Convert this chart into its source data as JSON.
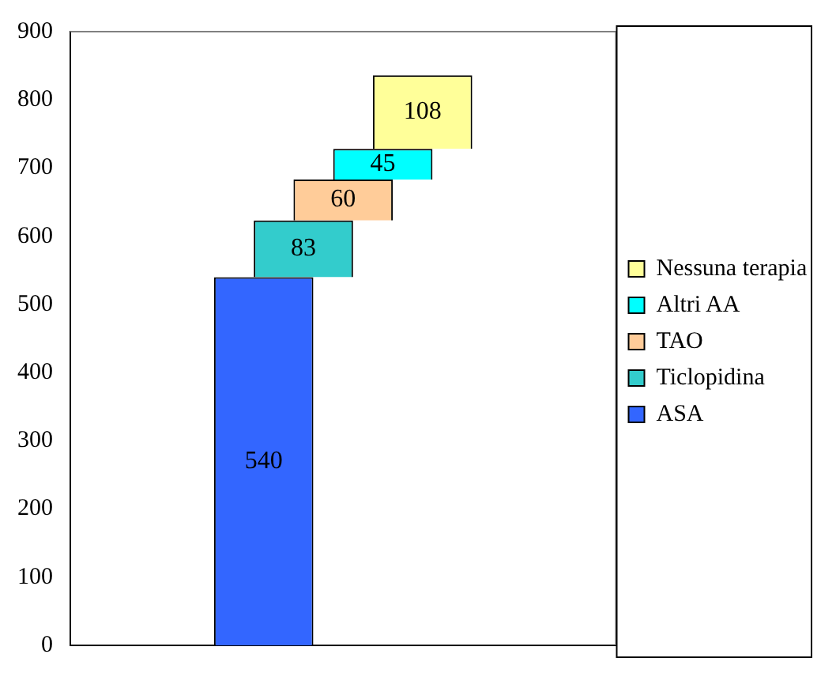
{
  "chart_data": {
    "type": "bar",
    "stacked": true,
    "categories": [
      null
    ],
    "series": [
      {
        "name": "ASA",
        "color": "#3366ff",
        "values": [
          540
        ]
      },
      {
        "name": "Ticlopidina",
        "color": "#33cccc",
        "values": [
          83
        ]
      },
      {
        "name": "TAO",
        "color": "#ffcc99",
        "values": [
          60
        ]
      },
      {
        "name": "Altri AA",
        "color": "#00ffff",
        "values": [
          45
        ]
      },
      {
        "name": "Nessuna terapia",
        "color": "#ffff99",
        "values": [
          108
        ]
      }
    ],
    "ylim": [
      0,
      900
    ],
    "yticks": [
      0,
      100,
      200,
      300,
      400,
      500,
      600,
      700,
      800,
      900
    ],
    "data_labels": true,
    "legend": "right",
    "grid": false
  }
}
